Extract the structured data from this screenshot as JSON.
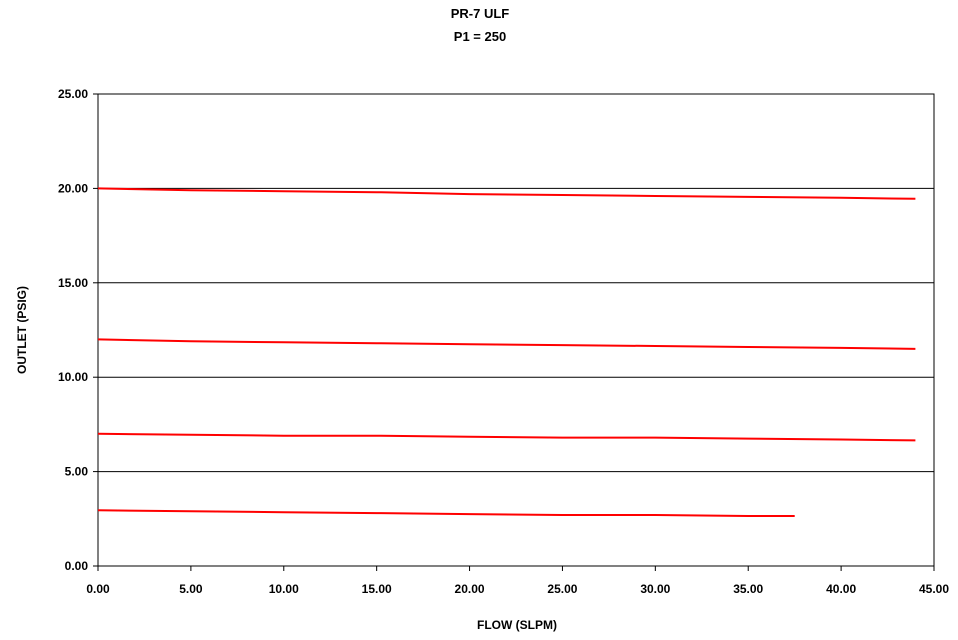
{
  "chart_data": {
    "type": "line",
    "title": "PR-7 ULF",
    "subtitle": "P1 = 250",
    "xlabel": "FLOW (SLPM)",
    "ylabel": "OUTLET (PSIG)",
    "xlim": [
      0,
      45
    ],
    "ylim": [
      0,
      25
    ],
    "x_ticks": [
      "0.00",
      "5.00",
      "10.00",
      "15.00",
      "20.00",
      "25.00",
      "30.00",
      "35.00",
      "40.00",
      "45.00"
    ],
    "y_ticks": [
      "0.00",
      "5.00",
      "10.00",
      "15.00",
      "20.00",
      "25.00"
    ],
    "grid": "horizontal",
    "legend": "none",
    "line_color": "#ff0000",
    "series": [
      {
        "x": [
          0,
          5,
          10,
          15,
          20,
          25,
          30,
          35,
          40,
          44
        ],
        "y": [
          20.0,
          19.9,
          19.85,
          19.8,
          19.7,
          19.65,
          19.6,
          19.55,
          19.5,
          19.45
        ]
      },
      {
        "x": [
          0,
          5,
          10,
          15,
          20,
          25,
          30,
          35,
          40,
          44
        ],
        "y": [
          12.0,
          11.9,
          11.85,
          11.8,
          11.75,
          11.7,
          11.65,
          11.6,
          11.55,
          11.5
        ]
      },
      {
        "x": [
          0,
          5,
          10,
          15,
          20,
          25,
          30,
          35,
          40,
          44
        ],
        "y": [
          7.0,
          6.95,
          6.9,
          6.9,
          6.85,
          6.8,
          6.8,
          6.75,
          6.7,
          6.65
        ]
      },
      {
        "x": [
          0,
          5,
          10,
          15,
          20,
          25,
          30,
          35,
          37.5
        ],
        "y": [
          2.95,
          2.9,
          2.85,
          2.8,
          2.75,
          2.7,
          2.7,
          2.65,
          2.65
        ]
      }
    ]
  }
}
